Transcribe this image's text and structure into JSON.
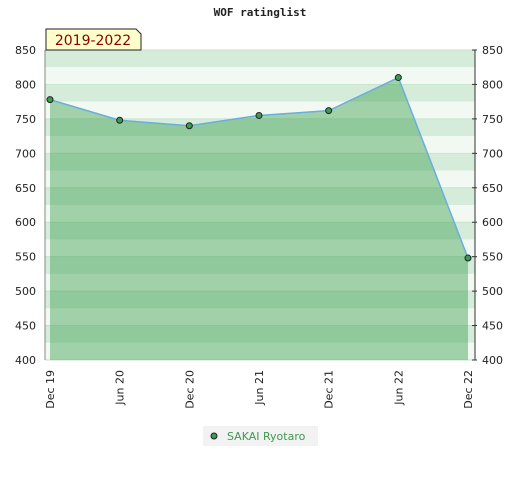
{
  "chart_data": {
    "type": "area",
    "title": "WOF ratinglist",
    "annotation": "2019-2022",
    "categories": [
      "Dec 19",
      "Jun 20",
      "Dec 20",
      "Jun 21",
      "Dec 21",
      "Jun 22",
      "Dec 22"
    ],
    "series": [
      {
        "name": "SAKAI Ryotaro",
        "color": "#3c9a52",
        "values": [
          778,
          748,
          740,
          755,
          762,
          810,
          548
        ]
      }
    ],
    "ylim": [
      400,
      850
    ],
    "yticks": [
      400,
      450,
      500,
      550,
      600,
      650,
      700,
      750,
      800,
      850
    ],
    "grid": true
  }
}
